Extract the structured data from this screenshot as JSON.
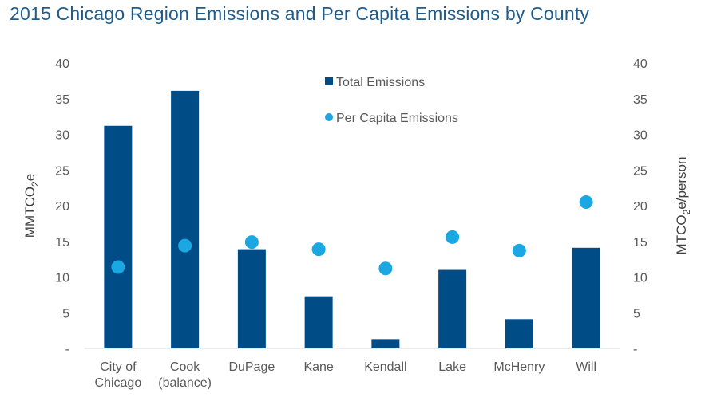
{
  "chart_data": {
    "type": "bar",
    "title": "2015 Chicago Region Emissions and Per Capita Emissions by County",
    "categories": [
      [
        "City of",
        "Chicago"
      ],
      [
        "Cook",
        "(balance)"
      ],
      [
        "DuPage"
      ],
      [
        "Kane"
      ],
      [
        "Kendall"
      ],
      [
        "Lake"
      ],
      [
        "McHenry"
      ],
      [
        "Will"
      ]
    ],
    "series": [
      {
        "name": "Total Emissions",
        "type": "bar",
        "axis": "left",
        "values": [
          31.2,
          36.1,
          13.9,
          7.3,
          1.3,
          11.0,
          4.1,
          14.1
        ]
      },
      {
        "name": "Per Capita Emissions",
        "type": "scatter",
        "axis": "right",
        "values": [
          11.4,
          14.4,
          14.9,
          13.9,
          11.2,
          15.6,
          13.7,
          20.5
        ]
      }
    ],
    "ylabel_left": [
      "MMTCO",
      "2",
      "e"
    ],
    "ylabel_right": [
      "MTCO",
      "2",
      "e/person"
    ],
    "ylim": [
      0,
      40
    ],
    "yticks": [
      "-",
      "5",
      "10",
      "15",
      "20",
      "25",
      "30",
      "35",
      "40"
    ],
    "grid": false,
    "legend_position": "top-center",
    "colors": {
      "bars": "#004c87",
      "points": "#1ba7e1",
      "title": "#1f5c8b"
    }
  }
}
